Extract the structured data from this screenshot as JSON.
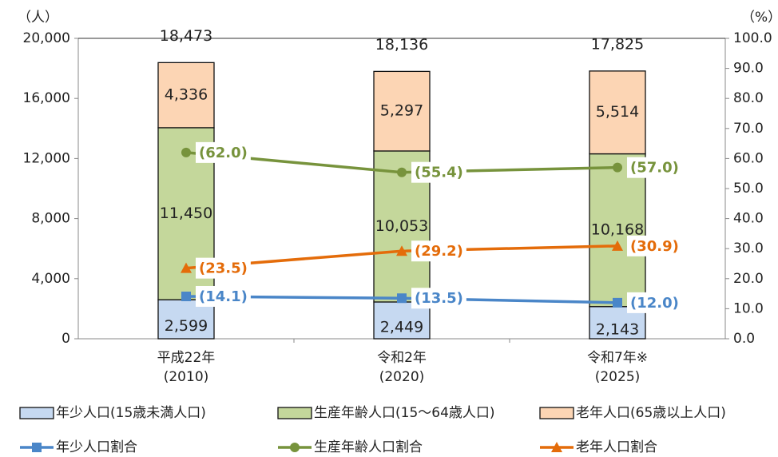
{
  "chart_data": {
    "type": "bar",
    "categories": [
      "平成22年\n(2010)",
      "令和2年\n(2020)",
      "令和7年※\n(2025)"
    ],
    "ylabel": "（人）",
    "y2label": "（%）",
    "ylim": [
      0,
      20000
    ],
    "yticks": [
      0,
      {
        "value": 4000,
        "label": "4,000"
      },
      {
        "value": 8000,
        "label": "8,000"
      },
      {
        "value": 12000,
        "label": "12,000"
      },
      {
        "value": 16000,
        "label": "16,000"
      },
      {
        "value": 20000,
        "label": "20,000"
      }
    ],
    "y2lim": [
      0,
      100
    ],
    "y2ticks": [
      {
        "value": 0,
        "label": "0.0"
      },
      {
        "value": 10,
        "label": "10.0"
      },
      {
        "value": 20,
        "label": "20.0"
      },
      {
        "value": 30,
        "label": "30.0"
      },
      {
        "value": 40,
        "label": "40.0"
      },
      {
        "value": 50,
        "label": "50.0"
      },
      {
        "value": 60,
        "label": "60.0"
      },
      {
        "value": 70,
        "label": "70.0"
      },
      {
        "value": 80,
        "label": "80.0"
      },
      {
        "value": 90,
        "label": "90.0"
      },
      {
        "value": 100,
        "label": "100.0"
      }
    ],
    "grid": false,
    "series": [
      {
        "name": "年少人口(15歳未満人口)",
        "type": "bar",
        "color": "#c6d9f1",
        "values": [
          2599,
          2449,
          2143
        ],
        "value_labels": [
          "2,599",
          "2,449",
          "2,143"
        ]
      },
      {
        "name": "生産年齢人口(15～64歳人口)",
        "type": "bar",
        "color": "#c4d79b",
        "values": [
          11450,
          10053,
          10168
        ],
        "value_labels": [
          "11,450",
          "10,053",
          "10,168"
        ]
      },
      {
        "name": "老年人口(65歳以上人口)",
        "type": "bar",
        "color": "#fcd5b4",
        "values": [
          4336,
          5297,
          5514
        ],
        "value_labels": [
          "4,336",
          "5,297",
          "5,514"
        ]
      },
      {
        "name": "年少人口割合",
        "type": "line",
        "axis": "y2",
        "marker": "square",
        "color": "#4a86c8",
        "values": [
          14.1,
          13.5,
          12.0
        ],
        "value_labels": [
          "(14.1)",
          "(13.5)",
          "(12.0)"
        ]
      },
      {
        "name": "生産年齢人口割合",
        "type": "line",
        "axis": "y2",
        "marker": "circle",
        "color": "#77933c",
        "values": [
          62.0,
          55.4,
          57.0
        ],
        "value_labels": [
          "(62.0)",
          "(55.4)",
          "(57.0)"
        ]
      },
      {
        "name": "老年人口割合",
        "type": "line",
        "axis": "y2",
        "marker": "triangle",
        "color": "#e46c0a",
        "values": [
          23.5,
          29.2,
          30.9
        ],
        "value_labels": [
          "(23.5)",
          "(29.2)",
          "(30.9)"
        ]
      }
    ],
    "totals": {
      "values": [
        18473,
        18136,
        17825
      ],
      "value_labels": [
        "18,473",
        "18,136",
        "17,825"
      ]
    }
  }
}
